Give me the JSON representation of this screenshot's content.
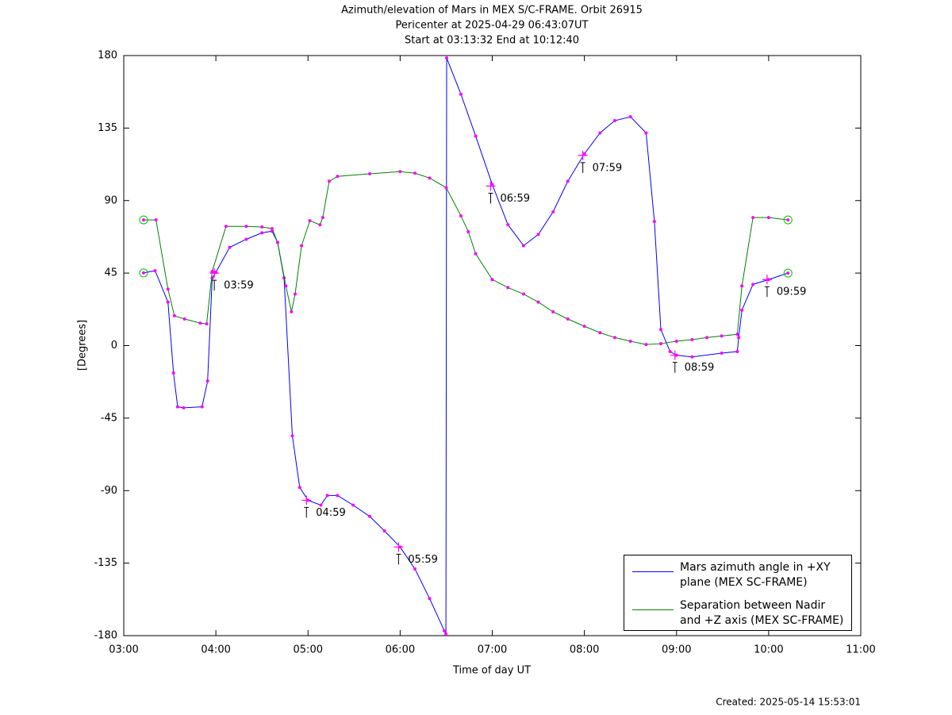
{
  "chart_data": {
    "type": "line",
    "title": "Azimuth/elevation of Mars in MEX S/C-FRAME.  Orbit 26915",
    "subtitle": [
      "Pericenter at 2025-04-29 06:43:07UT",
      "Start at 03:13:32 End at 10:12:40"
    ],
    "xlabel": "Time of day UT",
    "ylabel": "[Degrees]",
    "footer": "Created: 2025-05-14 15:53:01",
    "xlim": [
      3,
      11
    ],
    "xticks": [
      {
        "value": 3,
        "label": "03:00"
      },
      {
        "value": 4,
        "label": "04:00"
      },
      {
        "value": 5,
        "label": "05:00"
      },
      {
        "value": 6,
        "label": "06:00"
      },
      {
        "value": 7,
        "label": "07:00"
      },
      {
        "value": 8,
        "label": "08:00"
      },
      {
        "value": 9,
        "label": "09:00"
      },
      {
        "value": 10,
        "label": "10:00"
      },
      {
        "value": 11,
        "label": "11:00"
      }
    ],
    "ylim": [
      -180,
      180
    ],
    "yticks": [
      -180,
      -135,
      -90,
      -45,
      0,
      45,
      90,
      135,
      180
    ],
    "marker_color": "#ff00ff",
    "series": [
      {
        "name": "Mars azimuth angle in +XY\nplane (MEX SC-FRAME)",
        "color": "#0000ff",
        "x": [
          3.215,
          3.34,
          3.48,
          3.54,
          3.585,
          3.65,
          3.85,
          3.91,
          3.96,
          4.0,
          4.15,
          4.33,
          4.5,
          4.61,
          4.67,
          4.74,
          4.83,
          4.91,
          5.0,
          5.14,
          5.21,
          5.32,
          5.49,
          5.67,
          5.83,
          6.0,
          6.16,
          6.32,
          6.48,
          6.497,
          6.505,
          6.66,
          6.82,
          7.0,
          7.17,
          7.34,
          7.5,
          7.66,
          7.82,
          8.0,
          8.17,
          8.33,
          8.5,
          8.67,
          8.76,
          8.83,
          8.93,
          9.0,
          9.17,
          9.49,
          9.66,
          9.675,
          9.71,
          9.83,
          10.0,
          10.21
        ],
        "values": [
          45.1,
          46.5,
          27,
          -17,
          -38,
          -38.6,
          -38,
          -22,
          42,
          45.5,
          61,
          66,
          70,
          71,
          64,
          42,
          -56,
          -88,
          -96,
          -99,
          -93,
          -93,
          -99,
          -106,
          -115,
          -125,
          -138.6,
          -157,
          -177,
          -179,
          178.5,
          156,
          130,
          100,
          75,
          62,
          69,
          83,
          102,
          119,
          132,
          139.6,
          142,
          132,
          77,
          10,
          -3.7,
          -6,
          -7,
          -4.7,
          -3.7,
          5,
          22,
          38,
          41,
          45
        ]
      },
      {
        "name": "Separation between Nadir\nand +Z axis (MEX SC-FRAME)",
        "color": "#008000",
        "x": [
          3.215,
          3.35,
          3.48,
          3.55,
          3.66,
          3.83,
          3.9,
          3.96,
          4.11,
          4.33,
          4.5,
          4.61,
          4.67,
          4.76,
          4.82,
          4.86,
          4.93,
          5.02,
          5.13,
          5.16,
          5.23,
          5.32,
          5.67,
          6.0,
          6.16,
          6.32,
          6.5,
          6.66,
          6.74,
          6.82,
          7.0,
          7.17,
          7.34,
          7.5,
          7.66,
          7.82,
          8.0,
          8.17,
          8.33,
          8.5,
          8.67,
          8.83,
          9.0,
          9.17,
          9.33,
          9.49,
          9.66,
          9.71,
          9.83,
          10.0,
          10.21
        ],
        "values": [
          78,
          78,
          35,
          18.5,
          16.5,
          14,
          13.5,
          46,
          74,
          74,
          73.6,
          72.6,
          64,
          37,
          21,
          32,
          62,
          77.5,
          75,
          79.5,
          102,
          105,
          106.6,
          108,
          107,
          104,
          98,
          80.5,
          70.7,
          57,
          41,
          36,
          32,
          27,
          21,
          16.5,
          12,
          8,
          5,
          2.7,
          0.7,
          1.2,
          2.7,
          3.7,
          5,
          6,
          7,
          37,
          79.5,
          79.5,
          78
        ]
      }
    ],
    "annotations": [
      {
        "text": "03:59",
        "x": 3.983,
        "y": 45
      },
      {
        "text": "04:59",
        "x": 4.983,
        "y": -96
      },
      {
        "text": "05:59",
        "x": 5.983,
        "y": -125
      },
      {
        "text": "06:59",
        "x": 6.983,
        "y": 99
      },
      {
        "text": "07:59",
        "x": 7.983,
        "y": 118
      },
      {
        "text": "08:59",
        "x": 8.983,
        "y": -6
      },
      {
        "text": "09:59",
        "x": 9.983,
        "y": 41
      }
    ]
  }
}
